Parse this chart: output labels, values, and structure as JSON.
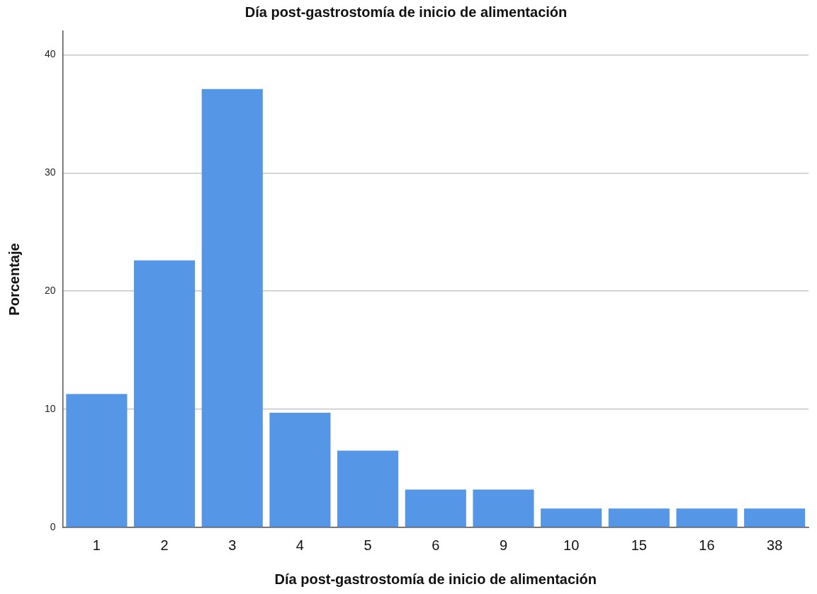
{
  "chart_data": {
    "type": "bar",
    "title": "Día post-gastrostomía de inicio de alimentación",
    "xlabel": "Día post-gastrostomía de inicio de alimentación",
    "ylabel": "Porcentaje",
    "categories": [
      "1",
      "2",
      "3",
      "4",
      "5",
      "6",
      "9",
      "10",
      "15",
      "16",
      "38"
    ],
    "values": [
      11.3,
      22.6,
      37.1,
      9.7,
      6.5,
      3.2,
      3.2,
      1.6,
      1.6,
      1.6,
      1.6
    ],
    "color": "#5596e6",
    "ylim": [
      0,
      42
    ],
    "yticks": [
      0,
      10,
      20,
      30,
      40
    ],
    "grid": "y",
    "legend": false
  }
}
